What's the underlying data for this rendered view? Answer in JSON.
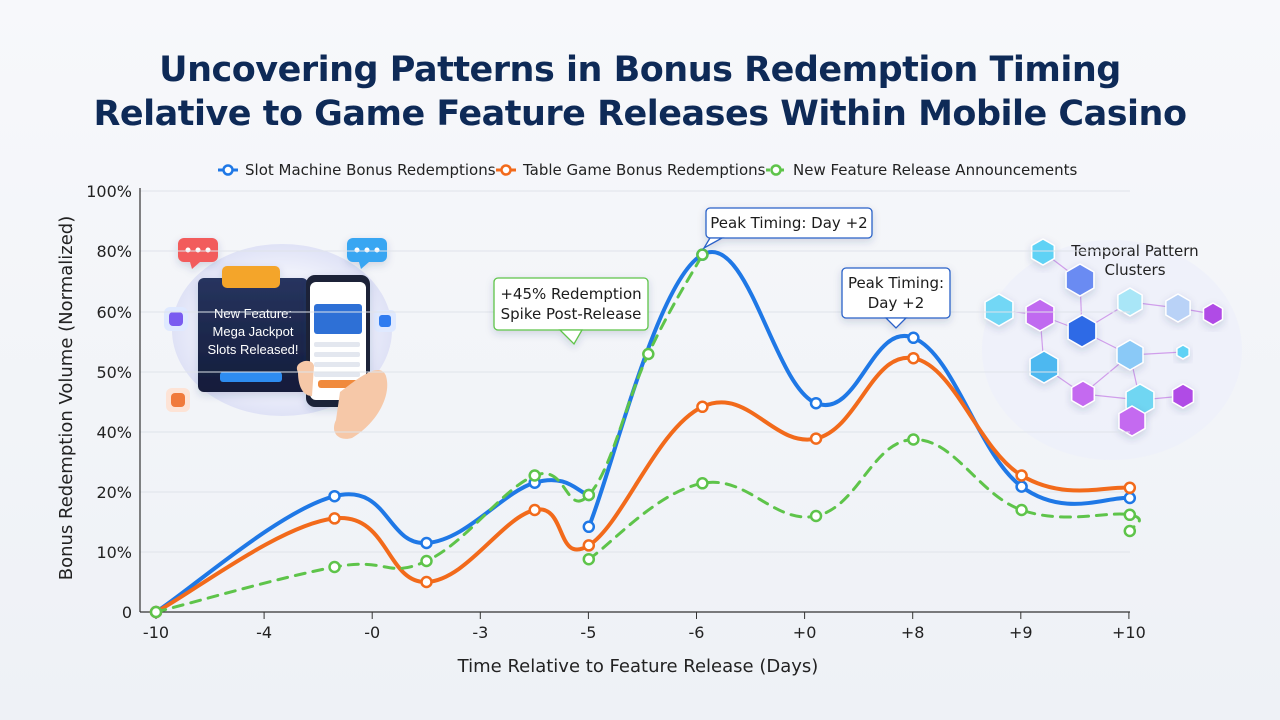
{
  "title": {
    "line1": "Uncovering Patterns in Bonus Redemption Timing",
    "line2": "Relative to Game Feature Releases Within Mobile Casino"
  },
  "chart_data": {
    "type": "line",
    "title": "Uncovering Patterns in Bonus Redemption Timing Relative to Game Feature Releases Within Mobile Casino",
    "xlabel": "Time Relative to Feature Release (Days)",
    "ylabel": "Bonus Redemption Volume (Normalized)",
    "x_ticks": [
      "-10",
      "-4",
      "-0",
      "-3",
      "-5",
      "-6",
      "+0",
      "+8",
      "+9",
      "+10"
    ],
    "y_ticks": [
      "0",
      "10%",
      "20%",
      "40%",
      "50%",
      "60%",
      "80%",
      "100%"
    ],
    "grid": true,
    "legend_position": "top",
    "series": [
      {
        "name": "Slot Machine Bonus Redemptions",
        "color": "#1f78e6",
        "style": "solid",
        "points": [
          [
            0,
            0
          ],
          [
            1.65,
            19.3
          ],
          [
            2.5,
            11.5
          ],
          [
            3.5,
            23.1
          ],
          [
            4.0,
            19.5
          ],
          [
            4.0,
            14.2
          ],
          [
            5.05,
            78.8
          ],
          [
            6.1,
            44.8
          ],
          [
            7.0,
            55.7
          ],
          [
            8.0,
            21.8
          ],
          [
            9.0,
            19.0
          ]
        ]
      },
      {
        "name": "Table Game Bonus Redemptions",
        "color": "#f26a1b",
        "style": "solid",
        "points": [
          [
            0,
            0
          ],
          [
            1.65,
            15.6
          ],
          [
            2.5,
            5.0
          ],
          [
            3.5,
            17.0
          ],
          [
            4.0,
            11.1
          ],
          [
            5.05,
            44.2
          ],
          [
            6.1,
            37.8
          ],
          [
            7.0,
            52.3
          ],
          [
            8.0,
            25.5
          ],
          [
            9.0,
            21.4
          ]
        ]
      },
      {
        "name": "New Feature Release Announcements",
        "color": "#5ec44a",
        "style": "dashed",
        "points": [
          [
            0,
            0
          ],
          [
            1.65,
            7.5
          ],
          [
            2.5,
            8.5
          ],
          [
            3.5,
            25.5
          ],
          [
            4.0,
            19.5
          ],
          [
            4.55,
            53.0
          ],
          [
            5.05,
            78.8
          ],
          [
            4.0,
            8.8
          ],
          [
            5.05,
            22.9
          ],
          [
            6.1,
            16.0
          ],
          [
            7.0,
            37.5
          ],
          [
            8.0,
            17.0
          ],
          [
            9.0,
            16.2
          ],
          [
            9.0,
            13.5
          ]
        ]
      }
    ],
    "annotations": [
      {
        "lines": [
          "+45% Redemption",
          "Spike Post-Release"
        ]
      },
      {
        "lines": [
          "Peak Timing: Day +2"
        ]
      },
      {
        "lines": [
          "Peak Timing:",
          "Day +2"
        ]
      }
    ]
  },
  "illustrations": {
    "phone_card_lines": [
      "New Feature:",
      "Mega Jackpot",
      "Slots Released!"
    ],
    "cluster_label_lines": [
      "Temporal Pattern",
      "Clusters"
    ]
  }
}
